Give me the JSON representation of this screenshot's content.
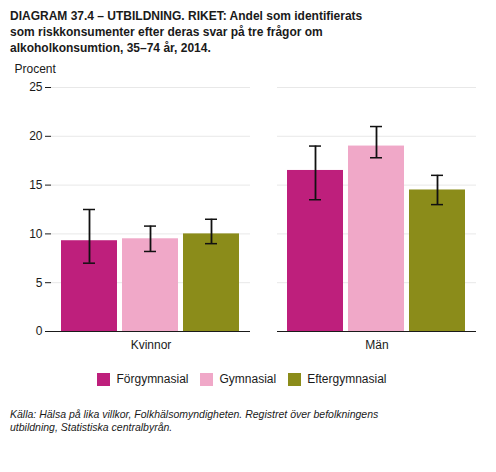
{
  "chart_data": {
    "type": "bar",
    "title": "DIAGRAM 37.4 – UTBILDNING. RIKET:  Andel som identifierats\nsom riskkonsumenter efter deras svar på tre frågor om\nalkoholkonsumtion, 35–74 år, 2014.",
    "ylabel": "Procent",
    "categories": [
      "Kvinnor",
      "Män"
    ],
    "series": [
      {
        "name": "Förgymnasial",
        "color": "#be1f7c",
        "values": [
          9.3,
          16.5
        ],
        "error_lower": [
          2.3,
          3.0
        ],
        "error_upper": [
          3.2,
          2.5
        ]
      },
      {
        "name": "Gymnasial",
        "color": "#f0a8c8",
        "values": [
          9.5,
          19.0
        ],
        "error_lower": [
          1.3,
          1.2
        ],
        "error_upper": [
          1.3,
          2.0
        ]
      },
      {
        "name": "Eftergymnasial",
        "color": "#8b8c1a",
        "values": [
          10.0,
          14.5
        ],
        "error_lower": [
          1.0,
          1.5
        ],
        "error_upper": [
          1.5,
          1.5
        ]
      }
    ],
    "ylim": [
      0,
      25
    ],
    "yticks": [
      0,
      5,
      10,
      15,
      20,
      25
    ],
    "grid": true,
    "legend": "bottom",
    "source": "Källa: Hälsa på lika villkor, Folkhälsomyndigheten. Registret över befolkningens\nutbildning, Statistiska centralbyrån."
  }
}
